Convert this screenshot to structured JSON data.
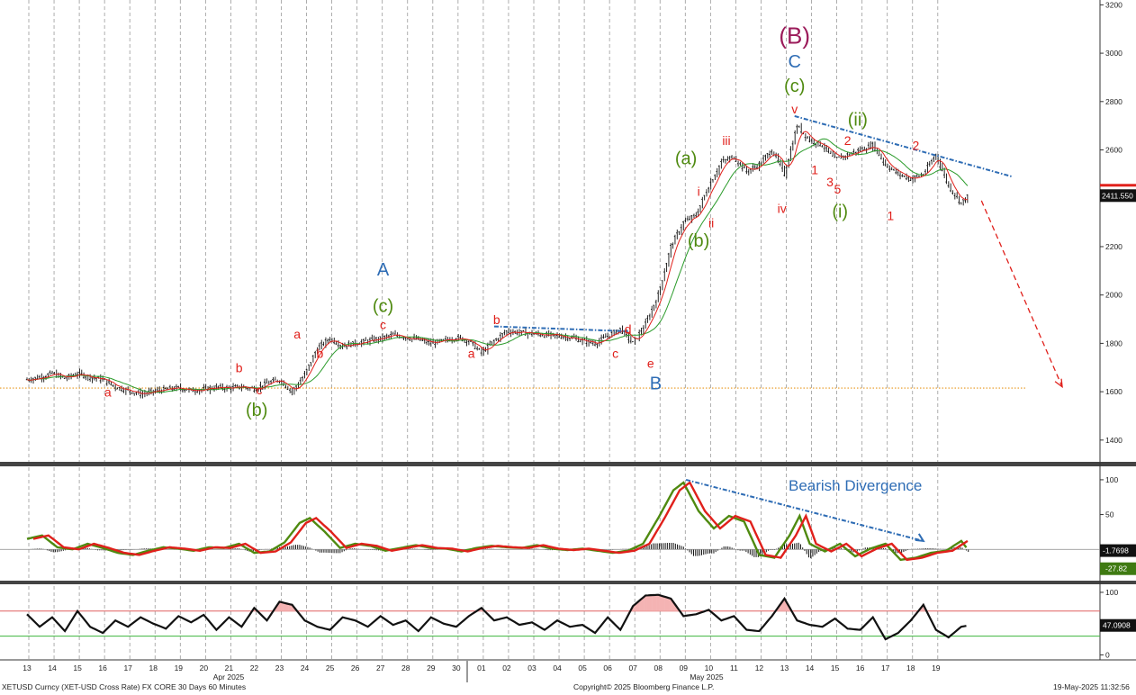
{
  "chart_data": {
    "type": "candlestick",
    "instrument": "XETUSD Curncy (XET-USD Cross Rate) FX CORE 30 Days 60 Minutes",
    "copyright": "Copyright© 2025 Bloomberg Finance L.P.",
    "timestamp": "19-May-2025 11:32:56",
    "x_axis": {
      "day_ticks": [
        "13",
        "14",
        "15",
        "16",
        "17",
        "18",
        "19",
        "20",
        "21",
        "22",
        "23",
        "24",
        "25",
        "26",
        "27",
        "28",
        "29",
        "30",
        "01",
        "02",
        "03",
        "04",
        "05",
        "06",
        "07",
        "08",
        "09",
        "10",
        "11",
        "12",
        "13",
        "14",
        "15",
        "16",
        "17",
        "18",
        "19"
      ],
      "month_labels": [
        "Apr 2025",
        "May 2025"
      ]
    },
    "price_panel": {
      "y_ticks": [
        1400,
        1600,
        1800,
        2000,
        2200,
        2400,
        2600,
        2800,
        3000,
        3200
      ],
      "ylim": [
        1310,
        3220
      ],
      "last_price": "2411.550",
      "support_level": 1615,
      "price_path": [
        [
          0,
          1650
        ],
        [
          0.5,
          1660
        ],
        [
          1,
          1675
        ],
        [
          1.5,
          1655
        ],
        [
          2,
          1675
        ],
        [
          2.5,
          1660
        ],
        [
          3,
          1650
        ],
        [
          3.5,
          1620
        ],
        [
          4,
          1605
        ],
        [
          4.5,
          1590
        ],
        [
          5,
          1600
        ],
        [
          5.5,
          1610
        ],
        [
          6,
          1615
        ],
        [
          6.5,
          1605
        ],
        [
          7,
          1610
        ],
        [
          7.5,
          1618
        ],
        [
          8,
          1615
        ],
        [
          8.5,
          1620
        ],
        [
          9,
          1612
        ],
        [
          9.5,
          1635
        ],
        [
          10,
          1650
        ],
        [
          10.5,
          1600
        ],
        [
          11,
          1670
        ],
        [
          11.5,
          1780
        ],
        [
          12,
          1820
        ],
        [
          12.5,
          1790
        ],
        [
          13,
          1800
        ],
        [
          13.5,
          1810
        ],
        [
          14,
          1820
        ],
        [
          14.5,
          1835
        ],
        [
          15,
          1825
        ],
        [
          15.5,
          1815
        ],
        [
          16,
          1800
        ],
        [
          16.5,
          1810
        ],
        [
          17,
          1825
        ],
        [
          17.5,
          1810
        ],
        [
          18,
          1760
        ],
        [
          18.5,
          1810
        ],
        [
          19,
          1850
        ],
        [
          19.5,
          1845
        ],
        [
          20,
          1840
        ],
        [
          20.5,
          1835
        ],
        [
          21,
          1830
        ],
        [
          21.5,
          1825
        ],
        [
          22,
          1810
        ],
        [
          22.5,
          1800
        ],
        [
          23,
          1830
        ],
        [
          23.5,
          1860
        ],
        [
          24,
          1800
        ],
        [
          24.5,
          1880
        ],
        [
          25,
          2000
        ],
        [
          25.5,
          2200
        ],
        [
          26,
          2300
        ],
        [
          26.5,
          2330
        ],
        [
          27,
          2450
        ],
        [
          27.5,
          2550
        ],
        [
          28,
          2570
        ],
        [
          28.5,
          2510
        ],
        [
          29,
          2540
        ],
        [
          29.5,
          2600
        ],
        [
          30,
          2500
        ],
        [
          30.5,
          2700
        ],
        [
          31,
          2640
        ],
        [
          31.5,
          2620
        ],
        [
          32,
          2560
        ],
        [
          32.5,
          2580
        ],
        [
          33,
          2600
        ],
        [
          33.5,
          2620
        ],
        [
          34,
          2540
        ],
        [
          34.5,
          2500
        ],
        [
          35,
          2480
        ],
        [
          35.5,
          2500
        ],
        [
          36,
          2580
        ],
        [
          36.5,
          2450
        ],
        [
          37,
          2380
        ],
        [
          37.3,
          2411
        ]
      ],
      "trendlines": [
        {
          "style": "dotted-blue",
          "points": [
            [
              18.5,
              1870
            ],
            [
              23.8,
              1850
            ]
          ]
        },
        {
          "style": "dotted-blue",
          "points": [
            [
              30.4,
              2740
            ],
            [
              39.0,
              2490
            ]
          ]
        },
        {
          "style": "dashed-red-arrow",
          "points": [
            [
              37.8,
              2390
            ],
            [
              41.0,
              1620
            ]
          ]
        }
      ],
      "wave_labels": [
        {
          "text": "a",
          "x": 3.2,
          "y": 1580,
          "color": "red",
          "size": "small"
        },
        {
          "text": "b",
          "x": 8.4,
          "y": 1680,
          "color": "red",
          "size": "small"
        },
        {
          "text": "c",
          "x": 9.2,
          "y": 1590,
          "color": "red",
          "size": "small"
        },
        {
          "text": "(b)",
          "x": 9.1,
          "y": 1500,
          "color": "green",
          "size": "medium"
        },
        {
          "text": "a",
          "x": 10.7,
          "y": 1820,
          "color": "red",
          "size": "small"
        },
        {
          "text": "b",
          "x": 11.6,
          "y": 1740,
          "color": "red",
          "size": "small"
        },
        {
          "text": "c",
          "x": 14.1,
          "y": 1860,
          "color": "red",
          "size": "small"
        },
        {
          "text": "(c)",
          "x": 14.1,
          "y": 1930,
          "color": "green",
          "size": "medium"
        },
        {
          "text": "A",
          "x": 14.1,
          "y": 2080,
          "color": "blue",
          "size": "medium"
        },
        {
          "text": "a",
          "x": 17.6,
          "y": 1740,
          "color": "red",
          "size": "small"
        },
        {
          "text": "b",
          "x": 18.6,
          "y": 1880,
          "color": "red",
          "size": "small"
        },
        {
          "text": "c",
          "x": 23.3,
          "y": 1740,
          "color": "red",
          "size": "small"
        },
        {
          "text": "d",
          "x": 23.8,
          "y": 1840,
          "color": "red",
          "size": "small"
        },
        {
          "text": "e",
          "x": 24.7,
          "y": 1700,
          "color": "red",
          "size": "small"
        },
        {
          "text": "B",
          "x": 24.9,
          "y": 1610,
          "color": "blue",
          "size": "medium"
        },
        {
          "text": "(a)",
          "x": 26.1,
          "y": 2540,
          "color": "green",
          "size": "medium"
        },
        {
          "text": "i",
          "x": 26.6,
          "y": 2410,
          "color": "red",
          "size": "small"
        },
        {
          "text": "(b)",
          "x": 26.6,
          "y": 2200,
          "color": "green",
          "size": "medium"
        },
        {
          "text": "ii",
          "x": 27.1,
          "y": 2280,
          "color": "red",
          "size": "small"
        },
        {
          "text": "iii",
          "x": 27.7,
          "y": 2620,
          "color": "red",
          "size": "small"
        },
        {
          "text": "iv",
          "x": 29.9,
          "y": 2340,
          "color": "red",
          "size": "small"
        },
        {
          "text": "v",
          "x": 30.4,
          "y": 2750,
          "color": "red",
          "size": "small"
        },
        {
          "text": "(c)",
          "x": 30.4,
          "y": 2840,
          "color": "green",
          "size": "medium"
        },
        {
          "text": "C",
          "x": 30.4,
          "y": 2940,
          "color": "blue",
          "size": "medium"
        },
        {
          "text": "(B)",
          "x": 30.4,
          "y": 3040,
          "color": "purple",
          "size": "large"
        },
        {
          "text": "1",
          "x": 31.2,
          "y": 2500,
          "color": "red",
          "size": "small"
        },
        {
          "text": "2",
          "x": 32.5,
          "y": 2620,
          "color": "red",
          "size": "small"
        },
        {
          "text": "3",
          "x": 31.8,
          "y": 2450,
          "color": "red",
          "size": "small"
        },
        {
          "text": "5",
          "x": 32.1,
          "y": 2420,
          "color": "red",
          "size": "small"
        },
        {
          "text": "(i)",
          "x": 32.2,
          "y": 2320,
          "color": "green",
          "size": "medium"
        },
        {
          "text": "(ii)",
          "x": 32.9,
          "y": 2700,
          "color": "green",
          "size": "medium"
        },
        {
          "text": "1",
          "x": 34.2,
          "y": 2310,
          "color": "red",
          "size": "small"
        },
        {
          "text": "2",
          "x": 35.2,
          "y": 2600,
          "color": "red",
          "size": "small"
        }
      ]
    },
    "oscillator_panel": {
      "y_ticks": [
        0,
        50,
        100
      ],
      "ylim": [
        -45,
        118
      ],
      "annotation": "Bearish Divergence",
      "last_values": [
        "-1.7698",
        "-27.82"
      ],
      "series_fast": [
        [
          0,
          15
        ],
        [
          0.6,
          20
        ],
        [
          1.2,
          3
        ],
        [
          1.8,
          0
        ],
        [
          2.4,
          8
        ],
        [
          3,
          2
        ],
        [
          3.6,
          -5
        ],
        [
          4.2,
          -8
        ],
        [
          4.8,
          -2
        ],
        [
          5.4,
          3
        ],
        [
          6,
          1
        ],
        [
          6.6,
          -2
        ],
        [
          7.2,
          3
        ],
        [
          7.8,
          2
        ],
        [
          8.4,
          8
        ],
        [
          9,
          -5
        ],
        [
          9.6,
          -3
        ],
        [
          10.2,
          10
        ],
        [
          10.8,
          38
        ],
        [
          11.2,
          45
        ],
        [
          11.8,
          25
        ],
        [
          12.4,
          2
        ],
        [
          13,
          8
        ],
        [
          13.6,
          5
        ],
        [
          14.2,
          -2
        ],
        [
          14.8,
          2
        ],
        [
          15.4,
          6
        ],
        [
          16,
          2
        ],
        [
          16.6,
          1
        ],
        [
          17.2,
          -3
        ],
        [
          17.8,
          2
        ],
        [
          18.4,
          5
        ],
        [
          19,
          3
        ],
        [
          19.6,
          2
        ],
        [
          20.2,
          6
        ],
        [
          20.8,
          1
        ],
        [
          21.4,
          -1
        ],
        [
          22,
          1
        ],
        [
          22.6,
          -2
        ],
        [
          23.2,
          -5
        ],
        [
          23.8,
          -2
        ],
        [
          24.4,
          8
        ],
        [
          25,
          45
        ],
        [
          25.6,
          85
        ],
        [
          26,
          96
        ],
        [
          26.6,
          55
        ],
        [
          27.2,
          30
        ],
        [
          27.8,
          48
        ],
        [
          28.4,
          40
        ],
        [
          29,
          -8
        ],
        [
          29.6,
          -12
        ],
        [
          30.2,
          20
        ],
        [
          30.6,
          48
        ],
        [
          31,
          8
        ],
        [
          31.6,
          -3
        ],
        [
          32.2,
          8
        ],
        [
          32.8,
          -10
        ],
        [
          33.4,
          1
        ],
        [
          34,
          8
        ],
        [
          34.6,
          -15
        ],
        [
          35.2,
          -12
        ],
        [
          35.8,
          -5
        ],
        [
          36.4,
          -2
        ],
        [
          37,
          12
        ],
        [
          37.3,
          -2
        ]
      ],
      "histogram_note": "black histogram around zero"
    },
    "rsi_panel": {
      "y_ticks": [
        0,
        50,
        100
      ],
      "ylim": [
        -8,
        110
      ],
      "upper_band": 70,
      "lower_band": 30,
      "last_value": "47.0908",
      "series": [
        [
          0,
          65
        ],
        [
          0.5,
          45
        ],
        [
          1,
          60
        ],
        [
          1.5,
          38
        ],
        [
          2,
          70
        ],
        [
          2.5,
          45
        ],
        [
          3,
          35
        ],
        [
          3.5,
          55
        ],
        [
          4,
          45
        ],
        [
          4.5,
          60
        ],
        [
          5,
          50
        ],
        [
          5.5,
          42
        ],
        [
          6,
          62
        ],
        [
          6.5,
          52
        ],
        [
          7,
          64
        ],
        [
          7.5,
          40
        ],
        [
          8,
          60
        ],
        [
          8.5,
          45
        ],
        [
          9,
          75
        ],
        [
          9.5,
          55
        ],
        [
          10,
          85
        ],
        [
          10.5,
          80
        ],
        [
          11,
          55
        ],
        [
          11.5,
          45
        ],
        [
          12,
          40
        ],
        [
          12.5,
          60
        ],
        [
          13,
          55
        ],
        [
          13.5,
          45
        ],
        [
          14,
          62
        ],
        [
          14.5,
          48
        ],
        [
          15,
          55
        ],
        [
          15.5,
          38
        ],
        [
          16,
          60
        ],
        [
          16.5,
          50
        ],
        [
          17,
          45
        ],
        [
          17.5,
          62
        ],
        [
          18,
          75
        ],
        [
          18.5,
          55
        ],
        [
          19,
          60
        ],
        [
          19.5,
          48
        ],
        [
          20,
          52
        ],
        [
          20.5,
          40
        ],
        [
          21,
          55
        ],
        [
          21.5,
          45
        ],
        [
          22,
          48
        ],
        [
          22.5,
          35
        ],
        [
          23,
          60
        ],
        [
          23.5,
          40
        ],
        [
          24,
          78
        ],
        [
          24.5,
          95
        ],
        [
          25,
          96
        ],
        [
          25.5,
          90
        ],
        [
          26,
          62
        ],
        [
          26.5,
          65
        ],
        [
          27,
          72
        ],
        [
          27.5,
          55
        ],
        [
          28,
          62
        ],
        [
          28.5,
          40
        ],
        [
          29,
          38
        ],
        [
          29.5,
          62
        ],
        [
          30,
          90
        ],
        [
          30.5,
          55
        ],
        [
          31,
          48
        ],
        [
          31.5,
          45
        ],
        [
          32,
          58
        ],
        [
          32.5,
          42
        ],
        [
          33,
          40
        ],
        [
          33.5,
          60
        ],
        [
          34,
          25
        ],
        [
          34.5,
          35
        ],
        [
          35,
          55
        ],
        [
          35.5,
          80
        ],
        [
          36,
          40
        ],
        [
          36.5,
          28
        ],
        [
          37,
          45
        ],
        [
          37.3,
          47
        ]
      ]
    }
  }
}
